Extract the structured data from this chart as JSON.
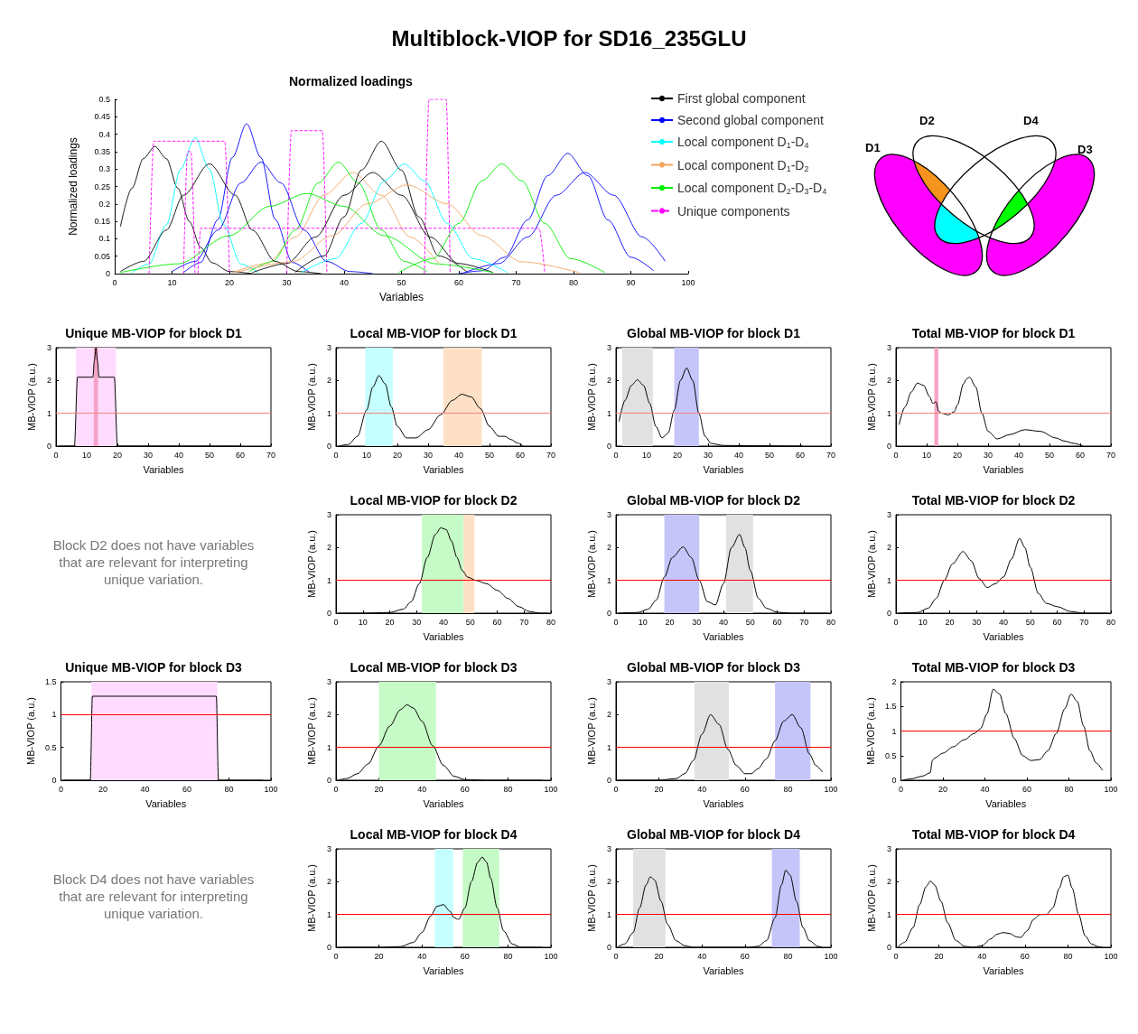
{
  "chart_data": [
    {
      "type": "other",
      "title": "Multiblock-VIOP for SD16_235GLU"
    },
    {
      "type": "line",
      "title": "Normalized loadings",
      "xlabel": "Variables",
      "ylabel": "Normalized loadings",
      "xlim": [
        0,
        100
      ],
      "xticks": [
        0,
        10,
        20,
        30,
        40,
        50,
        60,
        70,
        80,
        90,
        100
      ],
      "ylim": [
        0,
        0.5
      ],
      "yticks": [
        0,
        0.05,
        0.1,
        0.15,
        0.2,
        0.25,
        0.3,
        0.35,
        0.4,
        0.45,
        0.5
      ],
      "legend": "right",
      "marker": "none",
      "series": [
        {
          "name": "First global component",
          "color": "#000000",
          "x": [
            1,
            3,
            5,
            7,
            9,
            11,
            13,
            15,
            17,
            20,
            24
          ],
          "values": [
            0.135,
            0.245,
            0.33,
            0.365,
            0.33,
            0.245,
            0.15,
            0.075,
            0.031,
            0.006,
            0
          ]
        },
        {
          "name": "Second global component",
          "color": "#0000ff",
          "x": [
            12,
            15,
            18,
            20.5,
            23,
            25.5,
            28,
            31,
            34
          ],
          "values": [
            0.003,
            0.032,
            0.155,
            0.333,
            0.43,
            0.333,
            0.155,
            0.032,
            0.003
          ]
        },
        {
          "name": "Local component D$_{1}$-D$_{4}$",
          "color": "#00ffff",
          "x": [
            3,
            6,
            9,
            11.5,
            14,
            16.5,
            19,
            22,
            25
          ],
          "values": [
            0.003,
            0.028,
            0.14,
            0.3,
            0.39,
            0.3,
            0.14,
            0.028,
            0.003
          ]
        },
        {
          "name": "Local component D$_{1}$-D$_{2}$",
          "color": "#f4a460",
          "x": [
            20.5,
            26.5,
            31.5,
            36.5,
            41.5,
            46.5,
            51.5,
            56.5
          ],
          "values": [
            0.003,
            0.029,
            0.105,
            0.225,
            0.29,
            0.225,
            0.105,
            0.029
          ]
        },
        {
          "name": "Local component D$_{2}$-D$_{3}$-D$_{4}$",
          "color": "#00ee00",
          "x": [
            23.5,
            27.5,
            31.5,
            35.5,
            39,
            42.5,
            46.5,
            50.5,
            54.5
          ],
          "values": [
            0.006,
            0.035,
            0.125,
            0.26,
            0.32,
            0.26,
            0.125,
            0.035,
            0.006
          ]
        },
        {
          "name": "Unique components",
          "color": "#ff00ff",
          "line_style": "dashed",
          "x": [
            6,
            6.8,
            19.2,
            20
          ],
          "values": [
            0,
            0.38,
            0.38,
            0
          ]
        },
        {
          "color": "#ff00ff",
          "line_style": "dashed",
          "x": [
            12,
            12.7,
            13.3,
            14
          ],
          "values": [
            0,
            0.35,
            0.35,
            0
          ]
        },
        {
          "color": "#ff00ff",
          "line_style": "dashed",
          "x": [
            14.5,
            15,
            74,
            75
          ],
          "values": [
            0,
            0.13,
            0.13,
            0
          ]
        },
        {
          "color": "#ff00ff",
          "line_style": "dashed",
          "x": [
            30,
            30.8,
            36.2,
            37
          ],
          "values": [
            0,
            0.41,
            0.41,
            0
          ]
        },
        {
          "color": "#ff00ff",
          "line_style": "dashed",
          "x": [
            54,
            54.8,
            57.8,
            58.5
          ],
          "values": [
            0,
            0.5,
            0.5,
            0
          ]
        },
        {
          "color": "#000000",
          "x": [
            1,
            5,
            9,
            12,
            16.5,
            21,
            24,
            28,
            32,
            36
          ],
          "values": [
            0.006,
            0.035,
            0.125,
            0.225,
            0.315,
            0.225,
            0.125,
            0.035,
            0.006,
            0
          ]
        },
        {
          "color": "#000000",
          "x": [
            24,
            30,
            35,
            40,
            45,
            50,
            55,
            60,
            66
          ],
          "values": [
            0.003,
            0.029,
            0.105,
            0.225,
            0.29,
            0.225,
            0.105,
            0.029,
            0.003
          ]
        },
        {
          "color": "#000000",
          "x": [
            31.5,
            36.5,
            40,
            43,
            46.5,
            50,
            53,
            56.5,
            61.5
          ],
          "values": [
            0.004,
            0.051,
            0.163,
            0.297,
            0.38,
            0.297,
            0.163,
            0.051,
            0.004
          ]
        },
        {
          "color": "#0000ff",
          "x": [
            10,
            14,
            18,
            22,
            25.5,
            29,
            33,
            37,
            41,
            45
          ],
          "values": [
            0.006,
            0.035,
            0.125,
            0.26,
            0.32,
            0.26,
            0.125,
            0.035,
            0.006,
            0
          ]
        },
        {
          "color": "#0000ff",
          "x": [
            60,
            64,
            68,
            72,
            75.5,
            79,
            82.5,
            86,
            90,
            94
          ],
          "values": [
            0,
            0.008,
            0.047,
            0.154,
            0.281,
            0.345,
            0.281,
            0.154,
            0.047,
            0.008
          ]
        },
        {
          "color": "#0000ff",
          "x": [
            61,
            67,
            72,
            77,
            82,
            87,
            92,
            96
          ],
          "values": [
            0.003,
            0.029,
            0.105,
            0.225,
            0.29,
            0.225,
            0.105,
            0.035
          ]
        },
        {
          "color": "#00ffff",
          "x": [
            32.5,
            38.5,
            43,
            47,
            50.5,
            54,
            58,
            62.5,
            68.5
          ],
          "values": [
            0.003,
            0.043,
            0.144,
            0.266,
            0.315,
            0.266,
            0.144,
            0.043,
            0.003
          ]
        },
        {
          "color": "#f4a460",
          "x": [
            21,
            31,
            38,
            44,
            51,
            58,
            64,
            71,
            81
          ],
          "values": [
            0.003,
            0.034,
            0.109,
            0.2,
            0.255,
            0.2,
            0.109,
            0.034,
            0.003
          ]
        },
        {
          "color": "#00ee00",
          "x": [
            1,
            11,
            20,
            27,
            33.5,
            40,
            47,
            56,
            66
          ],
          "values": [
            0.003,
            0.028,
            0.109,
            0.193,
            0.23,
            0.193,
            0.109,
            0.028,
            0.003
          ]
        },
        {
          "color": "#00ee00",
          "x": [
            49.5,
            55.5,
            60,
            64,
            67.5,
            71,
            75,
            79.5,
            85.5
          ],
          "values": [
            0.003,
            0.043,
            0.144,
            0.266,
            0.315,
            0.266,
            0.144,
            0.043,
            0.003
          ]
        }
      ]
    },
    {
      "type": "other",
      "annotations": [
        "D1",
        "D2",
        "D4",
        "D3"
      ]
    },
    {
      "type": "line",
      "title": "Unique MB-VIOP for block D1",
      "xlabel": "Variables",
      "ylabel": "MB-VIOP (a.u.)",
      "xlim": [
        0,
        70
      ],
      "xticks": [
        0,
        10,
        20,
        30,
        40,
        50,
        60,
        70
      ],
      "ylim": [
        0,
        3
      ],
      "yticks": [
        0,
        1,
        2,
        3
      ],
      "marker": "none",
      "ref_lines": [
        {
          "axis": "y",
          "value": 1,
          "color": "#f48080"
        }
      ],
      "bands": [
        {
          "axis": "x",
          "from": 6.5,
          "to": 19.5,
          "color": "#ffdcff"
        },
        {
          "axis": "x",
          "from": 12.3,
          "to": 13.7,
          "color": "#f5a3c7"
        }
      ],
      "series": [
        {
          "color": "#000000",
          "x": [
            1,
            6,
            7,
            12,
            12.5,
            13,
            13.5,
            14,
            19,
            20,
            60
          ],
          "values": [
            0,
            0,
            2.1,
            2.1,
            2.6,
            3,
            2.6,
            2.1,
            2.1,
            0,
            0
          ]
        }
      ]
    },
    {
      "type": "line",
      "title": "Local MB-VIOP for block D1",
      "xlabel": "Variables",
      "ylabel": "MB-VIOP (a.u.)",
      "xlim": [
        0,
        70
      ],
      "xticks": [
        0,
        10,
        20,
        30,
        40,
        50,
        60,
        70
      ],
      "ylim": [
        0,
        3
      ],
      "yticks": [
        0,
        1,
        2,
        3
      ],
      "marker": "none",
      "ref_lines": [
        {
          "axis": "y",
          "value": 1,
          "color": "#f48080"
        }
      ],
      "bands": [
        {
          "axis": "x",
          "from": 9.5,
          "to": 18.5,
          "color": "#c6ffff"
        },
        {
          "axis": "x",
          "from": 35,
          "to": 47.5,
          "color": "#fde0c5"
        }
      ],
      "series": [
        {
          "color": "#000000",
          "x": [
            1,
            4,
            7,
            10,
            12,
            14,
            16,
            18,
            20,
            23,
            26,
            30,
            34,
            38,
            41,
            44,
            47,
            50,
            53,
            55,
            57,
            59,
            61
          ],
          "values": [
            0,
            0.05,
            0.3,
            1.1,
            1.8,
            2.15,
            1.9,
            1.2,
            0.6,
            0.25,
            0.25,
            0.5,
            0.95,
            1.4,
            1.58,
            1.5,
            1.15,
            0.6,
            0.3,
            0.3,
            0.2,
            0.1,
            0
          ]
        }
      ]
    },
    {
      "type": "line",
      "title": "Global MB-VIOP for block D1",
      "xlabel": "Variables",
      "ylabel": "MB-VIOP (a.u.)",
      "xlim": [
        0,
        70
      ],
      "xticks": [
        0,
        10,
        20,
        30,
        40,
        50,
        60,
        70
      ],
      "ylim": [
        0,
        3
      ],
      "yticks": [
        0,
        1,
        2,
        3
      ],
      "marker": "none",
      "ref_lines": [
        {
          "axis": "y",
          "value": 1,
          "color": "#f48080"
        }
      ],
      "bands": [
        {
          "axis": "x",
          "from": 2,
          "to": 12,
          "color": "#e1e1e1"
        },
        {
          "axis": "x",
          "from": 19,
          "to": 27,
          "color": "#c5c5fa"
        }
      ],
      "series": [
        {
          "color": "#000000",
          "x": [
            1,
            3,
            5,
            7,
            9,
            11,
            13,
            15,
            17,
            19,
            21,
            23,
            25,
            27,
            29,
            31,
            35,
            45,
            61
          ],
          "values": [
            0.75,
            1.4,
            1.85,
            2.02,
            1.85,
            1.3,
            0.6,
            0.25,
            0.4,
            1.1,
            2,
            2.38,
            2,
            1,
            0.3,
            0.08,
            0.02,
            0.01,
            0
          ]
        }
      ]
    },
    {
      "type": "line",
      "title": "Total MB-VIOP for block D1",
      "xlabel": "Variables",
      "ylabel": "MB-VIOP (a.u.)",
      "xlim": [
        0,
        70
      ],
      "xticks": [
        0,
        10,
        20,
        30,
        40,
        50,
        60,
        70
      ],
      "ylim": [
        0,
        3
      ],
      "yticks": [
        0,
        1,
        2,
        3
      ],
      "marker": "none",
      "ref_lines": [
        {
          "axis": "y",
          "value": 1,
          "color": "#f48080"
        }
      ],
      "bands": [
        {
          "axis": "x",
          "from": 12.5,
          "to": 13.8,
          "color": "#f5a3c7"
        }
      ],
      "series": [
        {
          "color": "#000000",
          "x": [
            1,
            3,
            5,
            7,
            9,
            11,
            12,
            13,
            14,
            15,
            17,
            19,
            20,
            22,
            23,
            24,
            26,
            28,
            30,
            33,
            37,
            42,
            47,
            52,
            55,
            58,
            61
          ],
          "values": [
            0.65,
            1.2,
            1.65,
            1.92,
            1.85,
            1.5,
            1.3,
            1.35,
            1.05,
            1,
            0.95,
            1.05,
            1.25,
            1.9,
            2.05,
            2.1,
            1.8,
            1,
            0.45,
            0.22,
            0.35,
            0.5,
            0.45,
            0.25,
            0.15,
            0.08,
            0
          ]
        }
      ]
    },
    {
      "type": "other",
      "annotations": [
        "Block D2 does not have variables that are relevant for interpreting unique variation."
      ]
    },
    {
      "type": "line",
      "title": "Local MB-VIOP for block D2",
      "xlabel": "Variables",
      "ylabel": "MB-VIOP (a.u.)",
      "xlim": [
        0,
        80
      ],
      "xticks": [
        0,
        10,
        20,
        30,
        40,
        50,
        60,
        70,
        80
      ],
      "ylim": [
        0,
        3
      ],
      "yticks": [
        0,
        1,
        2,
        3
      ],
      "marker": "none",
      "ref_lines": [
        {
          "axis": "y",
          "value": 1,
          "color": "#ff0000"
        }
      ],
      "bands": [
        {
          "axis": "x",
          "from": 32,
          "to": 47.5,
          "color": "#c6fac6"
        },
        {
          "axis": "x",
          "from": 47.5,
          "to": 51.5,
          "color": "#fde0c5"
        }
      ],
      "series": [
        {
          "color": "#000000",
          "x": [
            1,
            10,
            20,
            25,
            28,
            31,
            34,
            37,
            39,
            41,
            43,
            45,
            47,
            49,
            52,
            56,
            60,
            64,
            68,
            72,
            76,
            79
          ],
          "values": [
            0,
            0,
            0.02,
            0.12,
            0.35,
            0.9,
            1.7,
            2.4,
            2.6,
            2.55,
            2.2,
            1.7,
            1.3,
            1.1,
            1,
            0.9,
            0.7,
            0.45,
            0.2,
            0.05,
            0,
            0
          ]
        }
      ]
    },
    {
      "type": "line",
      "title": "Global MB-VIOP for block D2",
      "xlabel": "Variables",
      "ylabel": "MB-VIOP (a.u.)",
      "xlim": [
        0,
        80
      ],
      "xticks": [
        0,
        10,
        20,
        30,
        40,
        50,
        60,
        70,
        80
      ],
      "ylim": [
        0,
        3
      ],
      "yticks": [
        0,
        1,
        2,
        3
      ],
      "marker": "none",
      "ref_lines": [
        {
          "axis": "y",
          "value": 1,
          "color": "#ff0000"
        }
      ],
      "bands": [
        {
          "axis": "x",
          "from": 18,
          "to": 31,
          "color": "#c5c5fa"
        },
        {
          "axis": "x",
          "from": 41,
          "to": 51,
          "color": "#e1e1e1"
        }
      ],
      "series": [
        {
          "color": "#000000",
          "x": [
            1,
            8,
            12,
            15,
            18,
            21,
            25,
            28,
            31,
            34,
            37,
            40,
            43,
            46,
            48,
            50,
            53,
            56,
            60,
            65,
            70,
            79
          ],
          "values": [
            0,
            0.02,
            0.12,
            0.4,
            1.1,
            1.7,
            2.02,
            1.7,
            1,
            0.35,
            0.25,
            0.9,
            2,
            2.4,
            2,
            1.3,
            0.45,
            0.15,
            0.03,
            0,
            0,
            0
          ]
        }
      ]
    },
    {
      "type": "line",
      "title": "Total MB-VIOP for block D2",
      "xlabel": "Variables",
      "ylabel": "MB-VIOP (a.u.)",
      "xlim": [
        0,
        80
      ],
      "xticks": [
        0,
        10,
        20,
        30,
        40,
        50,
        60,
        70,
        80
      ],
      "ylim": [
        0,
        3
      ],
      "yticks": [
        0,
        1,
        2,
        3
      ],
      "marker": "none",
      "ref_lines": [
        {
          "axis": "y",
          "value": 1,
          "color": "#ff0000"
        }
      ],
      "series": [
        {
          "color": "#000000",
          "x": [
            1,
            8,
            12,
            15,
            18,
            21,
            25,
            28,
            31,
            34,
            37,
            40,
            43,
            46,
            48,
            50,
            53,
            56,
            60,
            65,
            70,
            79
          ],
          "values": [
            0,
            0.02,
            0.15,
            0.45,
            1,
            1.5,
            1.88,
            1.6,
            1.05,
            0.78,
            0.9,
            1.1,
            1.65,
            2.28,
            2,
            1.4,
            0.6,
            0.3,
            0.2,
            0.05,
            0,
            0
          ]
        }
      ]
    },
    {
      "type": "line",
      "title": "Unique MB-VIOP for block D3",
      "xlabel": "Variables",
      "ylabel": "MB-VIOP (a.u.)",
      "xlim": [
        0,
        100
      ],
      "xticks": [
        0,
        20,
        40,
        60,
        80,
        100
      ],
      "ylim": [
        0,
        1.5
      ],
      "yticks": [
        0,
        0.5,
        1,
        1.5
      ],
      "marker": "none",
      "ref_lines": [
        {
          "axis": "y",
          "value": 1,
          "color": "#ff0000"
        }
      ],
      "bands": [
        {
          "axis": "x",
          "from": 14.5,
          "to": 74.5,
          "color": "#ffdcff"
        }
      ],
      "series": [
        {
          "color": "#000000",
          "x": [
            1,
            14,
            15,
            74,
            75,
            96
          ],
          "values": [
            0,
            0,
            1.28,
            1.28,
            0,
            0
          ]
        }
      ]
    },
    {
      "type": "line",
      "title": "Local MB-VIOP for block D3",
      "xlabel": "Variables",
      "ylabel": "MB-VIOP (a.u.)",
      "xlim": [
        0,
        100
      ],
      "xticks": [
        0,
        20,
        40,
        60,
        80,
        100
      ],
      "ylim": [
        0,
        3
      ],
      "yticks": [
        0,
        1,
        2,
        3
      ],
      "marker": "none",
      "ref_lines": [
        {
          "axis": "y",
          "value": 1,
          "color": "#ff0000"
        }
      ],
      "bands": [
        {
          "axis": "x",
          "from": 20,
          "to": 46.5,
          "color": "#c6fac6"
        }
      ],
      "series": [
        {
          "color": "#000000",
          "x": [
            1,
            5,
            10,
            15,
            20,
            25,
            30,
            33,
            36,
            40,
            45,
            50,
            55,
            60,
            70,
            80,
            96
          ],
          "values": [
            0,
            0.05,
            0.2,
            0.5,
            1.05,
            1.65,
            2.15,
            2.3,
            2.2,
            1.8,
            1.05,
            0.45,
            0.12,
            0.02,
            0,
            0,
            0
          ]
        }
      ]
    },
    {
      "type": "line",
      "title": "Global MB-VIOP for block D3",
      "xlabel": "Variables",
      "ylabel": "MB-VIOP (a.u.)",
      "xlim": [
        0,
        100
      ],
      "xticks": [
        0,
        20,
        40,
        60,
        80,
        100
      ],
      "ylim": [
        0,
        3
      ],
      "yticks": [
        0,
        1,
        2,
        3
      ],
      "marker": "none",
      "ref_lines": [
        {
          "axis": "y",
          "value": 1,
          "color": "#ff0000"
        }
      ],
      "bands": [
        {
          "axis": "x",
          "from": 36.5,
          "to": 52.5,
          "color": "#e1e1e1"
        },
        {
          "axis": "x",
          "from": 74,
          "to": 90.5,
          "color": "#c5c5fa"
        }
      ],
      "series": [
        {
          "color": "#000000",
          "x": [
            1,
            20,
            28,
            32,
            36,
            40,
            44,
            48,
            52,
            56,
            60,
            63,
            66,
            70,
            74,
            78,
            82,
            86,
            90,
            93,
            96
          ],
          "values": [
            0,
            0,
            0.05,
            0.2,
            0.6,
            1.4,
            2,
            1.7,
            0.95,
            0.45,
            0.2,
            0.2,
            0.35,
            0.65,
            1.2,
            1.8,
            2,
            1.6,
            0.8,
            0.45,
            0.25
          ]
        }
      ]
    },
    {
      "type": "line",
      "title": "Total MB-VIOP for block D3",
      "xlabel": "Variables",
      "ylabel": "MB-VIOP (a.u.)",
      "xlim": [
        0,
        100
      ],
      "xticks": [
        0,
        20,
        40,
        60,
        80,
        100
      ],
      "ylim": [
        0,
        2
      ],
      "yticks": [
        0,
        0.5,
        1,
        1.5,
        2
      ],
      "marker": "none",
      "ref_lines": [
        {
          "axis": "y",
          "value": 1,
          "color": "#ff0000"
        }
      ],
      "series": [
        {
          "color": "#000000",
          "x": [
            1,
            5,
            10,
            14,
            15,
            16,
            20,
            25,
            30,
            35,
            38,
            41,
            44,
            47,
            50,
            54,
            58,
            62,
            66,
            70,
            74,
            78,
            81,
            84,
            87,
            90,
            93,
            96
          ],
          "values": [
            0,
            0.03,
            0.08,
            0.15,
            0.4,
            0.45,
            0.55,
            0.68,
            0.82,
            0.95,
            1.05,
            1.35,
            1.85,
            1.75,
            1.35,
            0.85,
            0.5,
            0.4,
            0.42,
            0.6,
            0.95,
            1.45,
            1.75,
            1.6,
            1.1,
            0.6,
            0.35,
            0.2
          ]
        }
      ]
    },
    {
      "type": "other",
      "annotations": [
        "Block D4 does not have variables that are relevant for interpreting unique variation."
      ]
    },
    {
      "type": "line",
      "title": "Local MB-VIOP for block D4",
      "xlabel": "Variables",
      "ylabel": "MB-VIOP (a.u.)",
      "xlim": [
        0,
        100
      ],
      "xticks": [
        0,
        20,
        40,
        60,
        80,
        100
      ],
      "ylim": [
        0,
        3
      ],
      "yticks": [
        0,
        1,
        2,
        3
      ],
      "marker": "none",
      "ref_lines": [
        {
          "axis": "y",
          "value": 1,
          "color": "#ff0000"
        }
      ],
      "bands": [
        {
          "axis": "x",
          "from": 46,
          "to": 54.5,
          "color": "#c6ffff"
        },
        {
          "axis": "x",
          "from": 59,
          "to": 76,
          "color": "#c6fac6"
        }
      ],
      "series": [
        {
          "color": "#000000",
          "x": [
            1,
            20,
            30,
            36,
            40,
            44,
            47,
            50,
            53,
            55,
            57,
            60,
            63,
            66,
            68,
            70,
            72,
            75,
            78,
            82,
            86,
            96
          ],
          "values": [
            0,
            0,
            0.02,
            0.15,
            0.45,
            0.95,
            1.25,
            1.3,
            1.1,
            0.9,
            0.85,
            1.2,
            2,
            2.6,
            2.75,
            2.6,
            2.1,
            1.2,
            0.5,
            0.1,
            0,
            0
          ]
        }
      ]
    },
    {
      "type": "line",
      "title": "Global MB-VIOP for block D4",
      "xlabel": "Variables",
      "ylabel": "MB-VIOP (a.u.)",
      "xlim": [
        0,
        100
      ],
      "xticks": [
        0,
        20,
        40,
        60,
        80,
        100
      ],
      "ylim": [
        0,
        3
      ],
      "yticks": [
        0,
        1,
        2,
        3
      ],
      "marker": "none",
      "ref_lines": [
        {
          "axis": "y",
          "value": 1,
          "color": "#ff0000"
        }
      ],
      "bands": [
        {
          "axis": "x",
          "from": 8,
          "to": 23,
          "color": "#e1e1e1"
        },
        {
          "axis": "x",
          "from": 72.5,
          "to": 85.5,
          "color": "#c5c5fa"
        }
      ],
      "series": [
        {
          "color": "#000000",
          "x": [
            1,
            4,
            8,
            11,
            14,
            16,
            18,
            21,
            24,
            28,
            32,
            36,
            45,
            55,
            62,
            66,
            70,
            74,
            77,
            79,
            81,
            84,
            87,
            90,
            94,
            96
          ],
          "values": [
            0.02,
            0.1,
            0.45,
            1.2,
            1.9,
            2.15,
            2.05,
            1.4,
            0.7,
            0.2,
            0.05,
            0,
            0,
            0,
            0,
            0.03,
            0.2,
            0.9,
            1.9,
            2.35,
            2.2,
            1.4,
            0.6,
            0.2,
            0.03,
            0
          ]
        }
      ]
    },
    {
      "type": "line",
      "title": "Total MB-VIOP for block D4",
      "xlabel": "Variables",
      "ylabel": "MB-VIOP (a.u.)",
      "xlim": [
        0,
        100
      ],
      "xticks": [
        0,
        20,
        40,
        60,
        80,
        100
      ],
      "ylim": [
        0,
        3
      ],
      "yticks": [
        0,
        1,
        2,
        3
      ],
      "marker": "none",
      "ref_lines": [
        {
          "axis": "y",
          "value": 1,
          "color": "#ff0000"
        }
      ],
      "series": [
        {
          "color": "#000000",
          "x": [
            1,
            4,
            8,
            11,
            14,
            16,
            18,
            21,
            24,
            28,
            32,
            36,
            40,
            44,
            47,
            50,
            53,
            56,
            58,
            61,
            64,
            67,
            70,
            73,
            76,
            78,
            80,
            82,
            85,
            88,
            91,
            94,
            96
          ],
          "values": [
            0.02,
            0.15,
            0.6,
            1.3,
            1.85,
            2.02,
            1.9,
            1.4,
            0.75,
            0.2,
            0.03,
            0,
            0.05,
            0.25,
            0.4,
            0.45,
            0.42,
            0.32,
            0.3,
            0.5,
            0.85,
            1,
            1,
            1.2,
            1.8,
            2.15,
            2.2,
            1.8,
            1,
            0.35,
            0.1,
            0.02,
            0
          ]
        }
      ]
    }
  ]
}
